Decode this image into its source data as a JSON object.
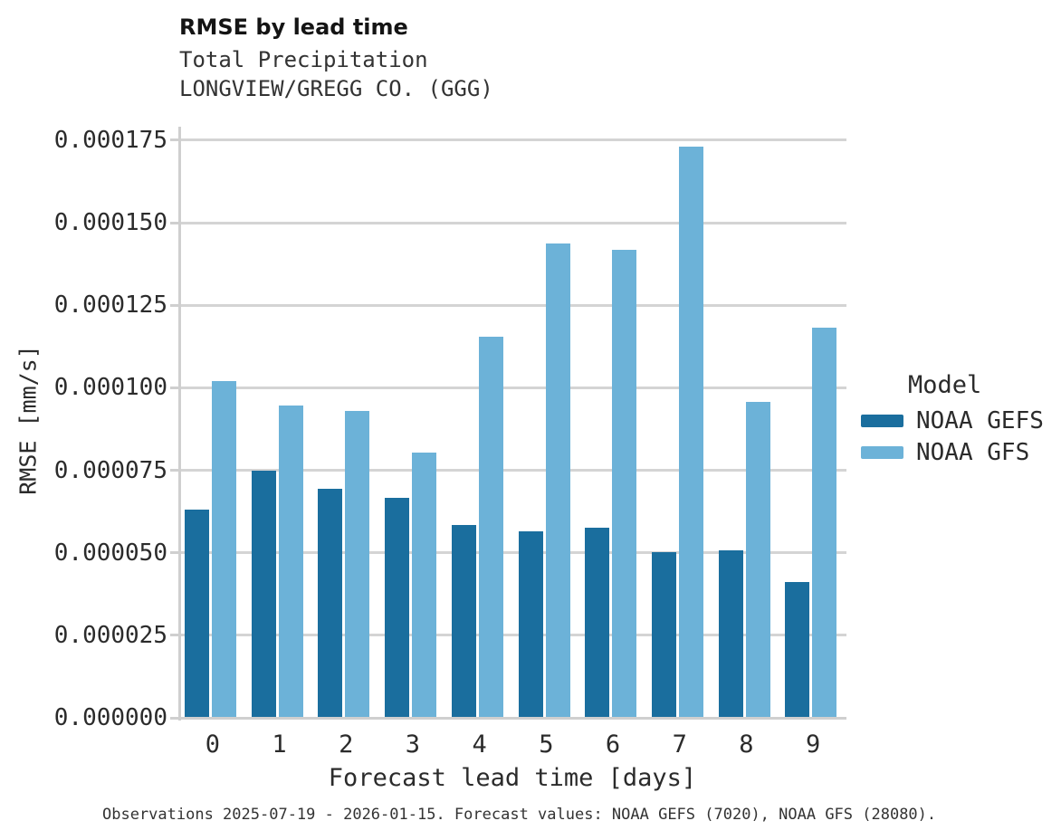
{
  "chart_data": {
    "type": "bar",
    "title": "RMSE by lead time",
    "subtitle": [
      "Total Precipitation",
      "LONGVIEW/GREGG CO. (GGG)"
    ],
    "xlabel": "Forecast lead time [days]",
    "ylabel": "RMSE [mm/s]",
    "categories": [
      "0",
      "1",
      "2",
      "3",
      "4",
      "5",
      "6",
      "7",
      "8",
      "9"
    ],
    "series": [
      {
        "name": "NOAA GEFS",
        "color": "#1A6E9E",
        "values": [
          6.32e-05,
          7.48e-05,
          6.94e-05,
          6.66e-05,
          5.83e-05,
          5.65e-05,
          5.76e-05,
          5.03e-05,
          5.07e-05,
          4.12e-05
        ]
      },
      {
        "name": "NOAA GFS",
        "color": "#6CB2D8",
        "values": [
          0.0001019,
          9.47e-05,
          9.29e-05,
          8.04e-05,
          0.0001156,
          0.0001438,
          0.0001417,
          0.000173,
          9.58e-05,
          0.0001183
        ]
      }
    ],
    "ylim": [
      0,
      0.0001791
    ],
    "yticks": [
      0,
      2.5e-05,
      5e-05,
      7.5e-05,
      0.0001,
      0.000125,
      0.00015,
      0.000175
    ],
    "ytick_labels": [
      "0.000000",
      "0.000025",
      "0.000050",
      "0.000075",
      "0.000100",
      "0.000125",
      "0.000150",
      "0.000175"
    ],
    "grid": "horizontal",
    "legend_title": "Model",
    "legend_position": "right",
    "caption": "Observations 2025-07-19 - 2026-01-15. Forecast values: NOAA GEFS (7020), NOAA GFS (28080)."
  },
  "colors": {
    "gridline": "#d4d4d4",
    "spine": "#cfcfcf",
    "gefs_bar": "#1A6E9E",
    "gfs_bar": "#6CB2D8"
  }
}
